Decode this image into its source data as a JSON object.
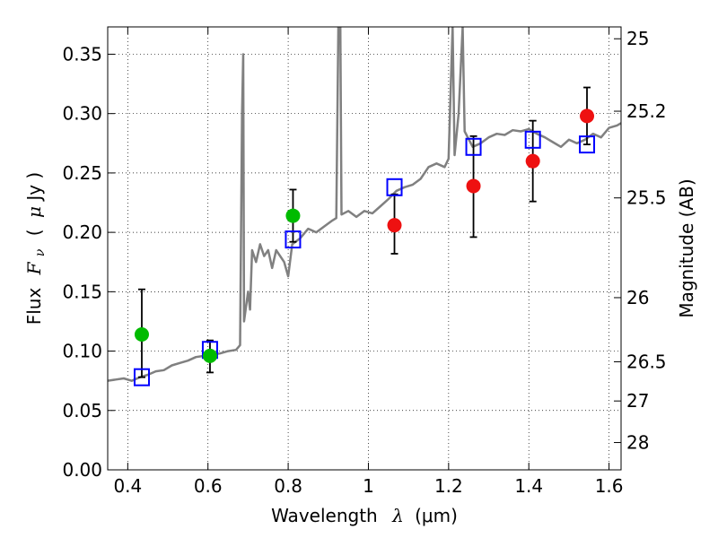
{
  "chart_data": {
    "type": "scatter",
    "xlabel": "Wavelength",
    "xlabel_symbol": "λ",
    "xlabel_unit": "(μm)",
    "ylabel": "Flux",
    "ylabel_symbol": "F",
    "ylabel_subscript": "ν",
    "ylabel_unit_open": "(",
    "ylabel_unit_mu": "μ",
    "ylabel_unit_rest": "Jy )",
    "y2label": "Magnitude (AB)",
    "xlim": [
      0.35,
      1.63
    ],
    "ylim": [
      0.0,
      0.373
    ],
    "grid": true,
    "x_ticks": [
      0.4,
      0.6,
      0.8,
      1.0,
      1.2,
      1.4,
      1.6
    ],
    "x_tick_labels": [
      "0.4",
      "0.6",
      "0.8",
      "1",
      "1.2",
      "1.4",
      "1.6"
    ],
    "y_ticks": [
      0.0,
      0.05,
      0.1,
      0.15,
      0.2,
      0.25,
      0.3,
      0.35
    ],
    "y_tick_labels": [
      "0.00",
      "0.05",
      "0.10",
      "0.15",
      "0.20",
      "0.25",
      "0.30",
      "0.35"
    ],
    "y2_ticks": [
      {
        "label": "25",
        "flux": 0.363
      },
      {
        "label": "25.2",
        "flux": 0.302
      },
      {
        "label": "25.5",
        "flux": 0.229
      },
      {
        "label": "26",
        "flux": 0.145
      },
      {
        "label": "26.5",
        "flux": 0.091
      },
      {
        "label": "27",
        "flux": 0.058
      },
      {
        "label": "28",
        "flux": 0.023
      }
    ],
    "series": [
      {
        "kind": "line",
        "color": "#808080",
        "points": [
          [
            0.35,
            0.075
          ],
          [
            0.37,
            0.076
          ],
          [
            0.39,
            0.077
          ],
          [
            0.41,
            0.075
          ],
          [
            0.43,
            0.078
          ],
          [
            0.45,
            0.08
          ],
          [
            0.47,
            0.083
          ],
          [
            0.49,
            0.084
          ],
          [
            0.51,
            0.088
          ],
          [
            0.53,
            0.09
          ],
          [
            0.55,
            0.092
          ],
          [
            0.57,
            0.095
          ],
          [
            0.59,
            0.096
          ],
          [
            0.61,
            0.097
          ],
          [
            0.63,
            0.098
          ],
          [
            0.65,
            0.1
          ],
          [
            0.67,
            0.101
          ],
          [
            0.68,
            0.105
          ],
          [
            0.685,
            0.3
          ],
          [
            0.688,
            0.35
          ],
          [
            0.69,
            0.125
          ],
          [
            0.7,
            0.15
          ],
          [
            0.705,
            0.135
          ],
          [
            0.71,
            0.185
          ],
          [
            0.72,
            0.175
          ],
          [
            0.73,
            0.19
          ],
          [
            0.74,
            0.18
          ],
          [
            0.75,
            0.185
          ],
          [
            0.76,
            0.17
          ],
          [
            0.77,
            0.185
          ],
          [
            0.79,
            0.175
          ],
          [
            0.8,
            0.163
          ],
          [
            0.81,
            0.19
          ],
          [
            0.83,
            0.195
          ],
          [
            0.85,
            0.203
          ],
          [
            0.87,
            0.2
          ],
          [
            0.89,
            0.205
          ],
          [
            0.91,
            0.21
          ],
          [
            0.92,
            0.212
          ],
          [
            0.925,
            0.373
          ],
          [
            0.93,
            0.373
          ],
          [
            0.933,
            0.215
          ],
          [
            0.95,
            0.218
          ],
          [
            0.97,
            0.213
          ],
          [
            0.99,
            0.218
          ],
          [
            1.01,
            0.216
          ],
          [
            1.03,
            0.222
          ],
          [
            1.05,
            0.228
          ],
          [
            1.07,
            0.235
          ],
          [
            1.09,
            0.238
          ],
          [
            1.11,
            0.24
          ],
          [
            1.13,
            0.245
          ],
          [
            1.15,
            0.255
          ],
          [
            1.17,
            0.258
          ],
          [
            1.19,
            0.255
          ],
          [
            1.2,
            0.262
          ],
          [
            1.21,
            0.373
          ],
          [
            1.215,
            0.265
          ],
          [
            1.225,
            0.3
          ],
          [
            1.235,
            0.373
          ],
          [
            1.24,
            0.285
          ],
          [
            1.26,
            0.272
          ],
          [
            1.28,
            0.275
          ],
          [
            1.3,
            0.28
          ],
          [
            1.32,
            0.283
          ],
          [
            1.34,
            0.282
          ],
          [
            1.36,
            0.286
          ],
          [
            1.38,
            0.285
          ],
          [
            1.4,
            0.287
          ],
          [
            1.42,
            0.283
          ],
          [
            1.44,
            0.28
          ],
          [
            1.46,
            0.276
          ],
          [
            1.48,
            0.272
          ],
          [
            1.5,
            0.278
          ],
          [
            1.52,
            0.275
          ],
          [
            1.54,
            0.278
          ],
          [
            1.56,
            0.283
          ],
          [
            1.58,
            0.28
          ],
          [
            1.6,
            0.288
          ],
          [
            1.62,
            0.29
          ],
          [
            1.63,
            0.292
          ]
        ]
      },
      {
        "kind": "markers",
        "marker": "square",
        "color": "#0000ff",
        "points": [
          [
            0.435,
            0.078
          ],
          [
            0.605,
            0.101
          ],
          [
            0.812,
            0.194
          ],
          [
            1.065,
            0.238
          ],
          [
            1.262,
            0.272
          ],
          [
            1.41,
            0.278
          ],
          [
            1.545,
            0.274
          ]
        ]
      },
      {
        "kind": "markers",
        "marker": "circle",
        "color": "#00bb00",
        "points": [
          [
            0.435,
            0.114
          ],
          [
            0.605,
            0.096
          ],
          [
            0.812,
            0.214
          ]
        ]
      },
      {
        "kind": "markers",
        "marker": "circle",
        "color": "#ee1111",
        "points": [
          [
            1.065,
            0.206
          ],
          [
            1.262,
            0.239
          ],
          [
            1.41,
            0.26
          ],
          [
            1.545,
            0.298
          ]
        ]
      }
    ],
    "error_bars": [
      {
        "x": 0.435,
        "low": 0.078,
        "high": 0.152
      },
      {
        "x": 0.605,
        "low": 0.082,
        "high": 0.109
      },
      {
        "x": 0.812,
        "low": 0.192,
        "high": 0.236
      },
      {
        "x": 1.065,
        "low": 0.182,
        "high": 0.232
      },
      {
        "x": 1.262,
        "low": 0.196,
        "high": 0.281
      },
      {
        "x": 1.41,
        "low": 0.226,
        "high": 0.294
      },
      {
        "x": 1.545,
        "low": 0.274,
        "high": 0.322
      }
    ]
  }
}
